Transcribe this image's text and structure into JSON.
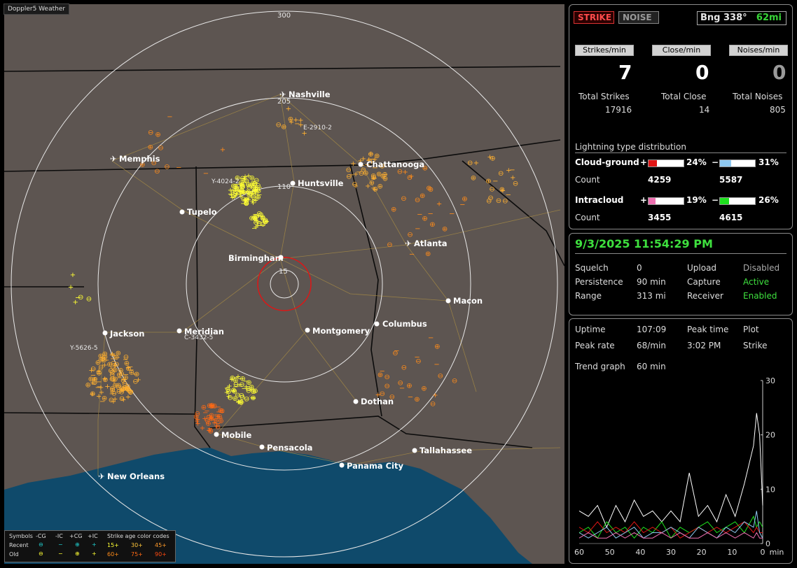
{
  "app": {
    "title": "Doppler5 Weather"
  },
  "map": {
    "range_labels": [
      "300",
      "205",
      "110",
      "15"
    ],
    "cities": [
      {
        "name": "Nashville",
        "type": "airport"
      },
      {
        "name": "Memphis",
        "type": "airport"
      },
      {
        "name": "Chattanooga",
        "type": "city"
      },
      {
        "name": "Huntsville",
        "type": "city"
      },
      {
        "name": "Tupelo",
        "type": "city"
      },
      {
        "name": "Birmingham",
        "type": "city"
      },
      {
        "name": "Atlanta",
        "type": "airport"
      },
      {
        "name": "Macon",
        "type": "city"
      },
      {
        "name": "Jackson",
        "type": "city"
      },
      {
        "name": "Meridian",
        "type": "city"
      },
      {
        "name": "Montgomery",
        "type": "city"
      },
      {
        "name": "Columbus",
        "type": "city"
      },
      {
        "name": "Dothan",
        "type": "city"
      },
      {
        "name": "Mobile",
        "type": "city"
      },
      {
        "name": "Pensacola",
        "type": "city"
      },
      {
        "name": "Tallahassee",
        "type": "city"
      },
      {
        "name": "Panama City",
        "type": "city"
      },
      {
        "name": "New Orleans",
        "type": "airport"
      }
    ],
    "cell_tags": [
      "E-2910-2",
      "Y-4024-2",
      "Y-5626-5",
      "C-3432-5"
    ],
    "colors": {
      "land": "#5d5551",
      "water": "#0f4a6b",
      "rings": "#e8e8e8",
      "close_ring": "#e01515",
      "recent_strike": "#ffff33",
      "old_strike": "#ff8c1a"
    }
  },
  "legend": {
    "symbols_label": "Symbols",
    "col_headers": [
      "-CG",
      "-IC",
      "+CG",
      "+IC"
    ],
    "rows": [
      "Recent",
      "Old"
    ],
    "age_label": "Strike age color codes",
    "ages_recent": [
      "15+",
      "30+",
      "45+"
    ],
    "ages_old": [
      "60+",
      "75+",
      "90+"
    ]
  },
  "status": {
    "strike_tab": "STRIKE",
    "noise_tab": "NOISE",
    "bearing": "Bng 338°",
    "distance": "62mi",
    "buttons": [
      "Strikes/min",
      "Close/min",
      "Noises/min"
    ],
    "strikes_per_min": "7",
    "close_per_min": "0",
    "noises_per_min": "0",
    "total_strikes_label": "Total Strikes",
    "total_strikes": "17916",
    "total_close_label": "Total Close",
    "total_close": "14",
    "total_noises_label": "Total Noises",
    "total_noises": "805"
  },
  "distribution": {
    "title": "Lightning type distribution",
    "cg_label": "Cloud-ground",
    "ic_label": "Intracloud",
    "count_label": "Count",
    "plus": "+",
    "minus": "−",
    "cg_pos_pct": "24%",
    "cg_pos_fill": 0.24,
    "cg_pos_color": "#e01515",
    "cg_neg_pct": "31%",
    "cg_neg_fill": 0.31,
    "cg_neg_color": "#8ec8f0",
    "cg_pos_count": "4259",
    "cg_neg_count": "5587",
    "ic_pos_pct": "19%",
    "ic_pos_fill": 0.19,
    "ic_pos_color": "#ee6fb0",
    "ic_neg_pct": "26%",
    "ic_neg_fill": 0.26,
    "ic_neg_color": "#1ee01e",
    "ic_pos_count": "3455",
    "ic_neg_count": "4615"
  },
  "settings": {
    "datetime": "9/3/2025 11:54:29 PM",
    "squelch_label": "Squelch",
    "squelch": "0",
    "persistence_label": "Persistence",
    "persistence": "90 min",
    "range_label": "Range",
    "range": "313 mi",
    "upload_label": "Upload",
    "upload": "Disabled",
    "capture_label": "Capture",
    "capture": "Active",
    "receiver_label": "Receiver",
    "receiver": "Enabled"
  },
  "trend": {
    "uptime_label": "Uptime",
    "uptime": "107:09",
    "peak_time_label": "Peak time",
    "peak_time": "3:02 PM",
    "plot_label": "Plot",
    "peak_rate_label": "Peak rate",
    "peak_rate": "68/min",
    "plot_value": "Strike",
    "graph_label": "Trend graph",
    "graph_value": "60 min",
    "y_ticks": [
      "30",
      "20",
      "10",
      "0"
    ],
    "x_ticks": [
      "60",
      "50",
      "40",
      "30",
      "20",
      "10",
      "0"
    ],
    "x_unit": "min"
  },
  "chart_data": {
    "type": "line",
    "x": [
      60,
      57,
      54,
      51,
      48,
      45,
      42,
      39,
      36,
      33,
      30,
      27,
      24,
      21,
      18,
      15,
      12,
      9,
      6,
      3,
      2,
      1,
      0
    ],
    "series": [
      {
        "color": "#ffffff",
        "values": [
          6,
          5,
          7,
          3,
          7,
          4,
          8,
          5,
          6,
          4,
          6,
          4,
          13,
          5,
          7,
          4,
          9,
          5,
          11,
          18,
          24,
          20,
          7
        ]
      },
      {
        "color": "#1ee01e",
        "values": [
          2,
          3,
          1,
          4,
          2,
          3,
          1,
          3,
          2,
          4,
          1,
          3,
          2,
          3,
          4,
          2,
          3,
          4,
          2,
          5,
          3,
          4,
          3
        ]
      },
      {
        "color": "#e01515",
        "values": [
          3,
          2,
          4,
          2,
          3,
          2,
          4,
          2,
          3,
          2,
          3,
          1,
          2,
          3,
          2,
          3,
          2,
          3,
          4,
          2,
          3,
          2,
          2
        ]
      },
      {
        "color": "#8ec8f0",
        "values": [
          2,
          1,
          2,
          3,
          1,
          2,
          3,
          1,
          2,
          2,
          3,
          2,
          1,
          3,
          2,
          1,
          3,
          2,
          4,
          3,
          6,
          2,
          1
        ]
      },
      {
        "color": "#ee6fb0",
        "values": [
          1,
          2,
          1,
          1,
          2,
          1,
          2,
          1,
          1,
          2,
          1,
          2,
          1,
          1,
          2,
          1,
          2,
          1,
          2,
          1,
          2,
          1,
          1
        ]
      }
    ],
    "ylim": [
      0,
      30
    ],
    "xlim": [
      60,
      0
    ]
  }
}
